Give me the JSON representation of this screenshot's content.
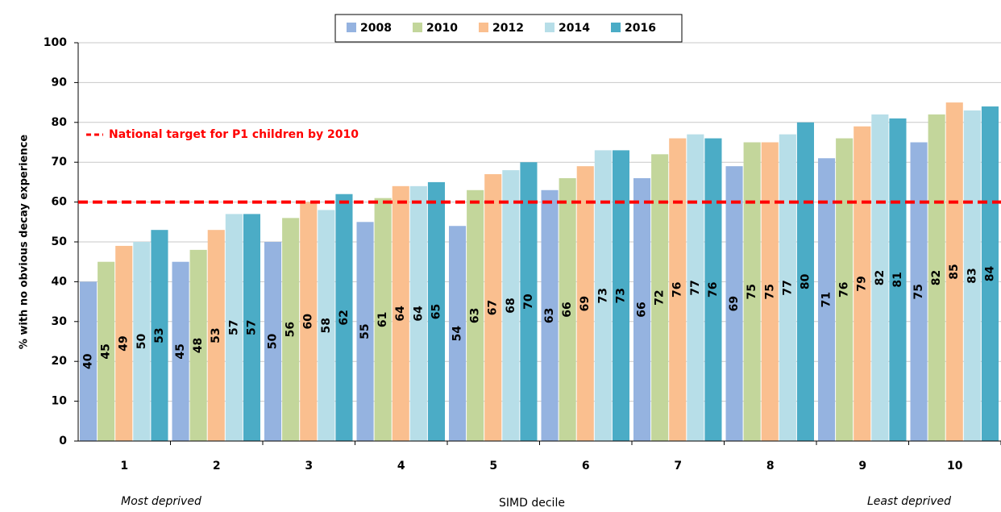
{
  "chart_data": {
    "type": "bar",
    "x_label": "SIMD decile",
    "y_label": "% with no obvious decay experience",
    "annotations": [
      "Most deprived",
      "Least deprived"
    ],
    "target_line": {
      "label": "National target for P1 children by 2010",
      "value": 60,
      "color": "#ff0000"
    },
    "categories": [
      "1",
      "2",
      "3",
      "4",
      "5",
      "6",
      "7",
      "8",
      "9",
      "10"
    ],
    "series": [
      {
        "name": "2008",
        "color": "#95b3e0",
        "values": [
          40,
          45,
          50,
          55,
          54,
          63,
          66,
          69,
          71,
          75
        ]
      },
      {
        "name": "2010",
        "color": "#c3d69b",
        "values": [
          45,
          48,
          56,
          61,
          63,
          66,
          72,
          75,
          76,
          82
        ]
      },
      {
        "name": "2012",
        "color": "#fabf8f",
        "values": [
          49,
          53,
          60,
          64,
          67,
          69,
          76,
          75,
          79,
          85
        ]
      },
      {
        "name": "2014",
        "color": "#b7dee8",
        "values": [
          50,
          57,
          58,
          64,
          68,
          73,
          77,
          77,
          82,
          83
        ]
      },
      {
        "name": "2016",
        "color": "#4bacc6",
        "values": [
          53,
          57,
          62,
          65,
          70,
          73,
          76,
          80,
          81,
          84
        ]
      }
    ],
    "ylim": [
      0,
      100
    ],
    "yticks": [
      0,
      10,
      20,
      30,
      40,
      50,
      60,
      70,
      80,
      90,
      100
    ],
    "grid": true,
    "legend": "top"
  }
}
